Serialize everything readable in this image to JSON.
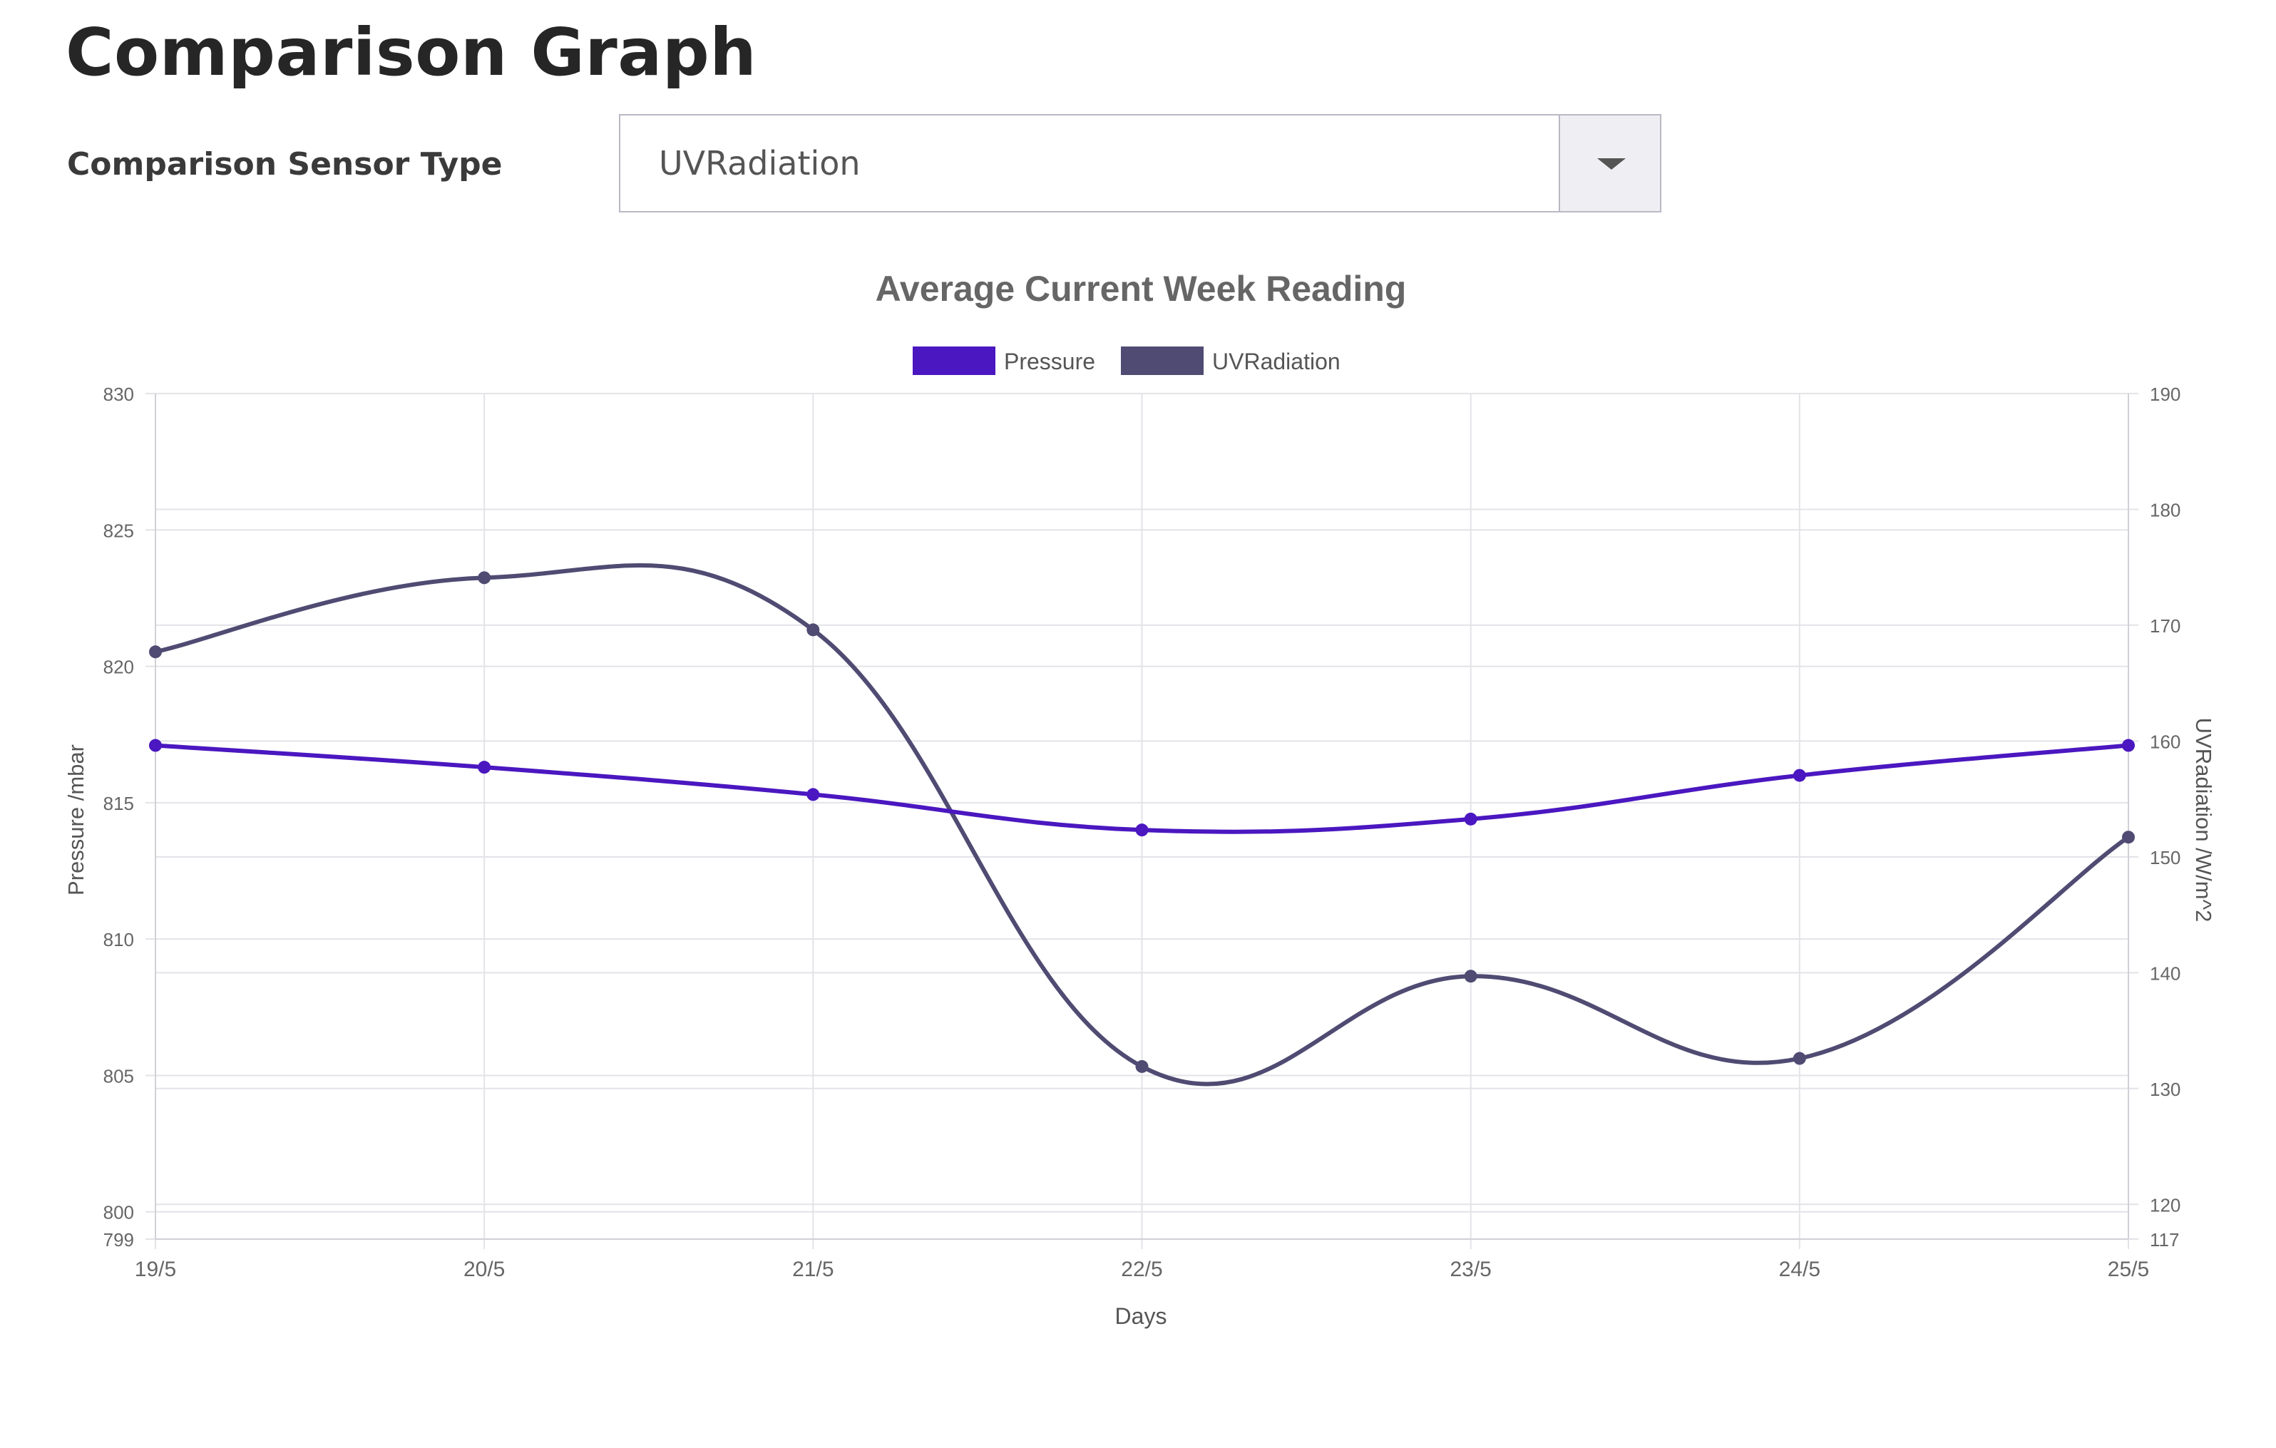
{
  "page": {
    "title": "Comparison Graph",
    "sensor_label": "Comparison Sensor Type",
    "sensor_selected": "UVRadiation"
  },
  "colors": {
    "pressure": "#4a17c0",
    "uvradiation": "#4f4b72",
    "grid": "#e3e3e8",
    "text": "#666666"
  },
  "icons": {
    "dropdown": "caret-down-icon"
  },
  "chart_data": {
    "type": "line",
    "title": "Average Current Week Reading",
    "xlabel": "Days",
    "categories": [
      "19/5",
      "20/5",
      "21/5",
      "22/5",
      "23/5",
      "24/5",
      "25/5"
    ],
    "grid": true,
    "legend_position": "top",
    "series": [
      {
        "name": "Pressure",
        "axis": "left",
        "values": [
          817.1,
          816.3,
          815.3,
          814.0,
          814.4,
          816.0,
          817.1
        ]
      },
      {
        "name": "UVRadiation",
        "axis": "right",
        "values": [
          167.7,
          174.1,
          169.6,
          131.9,
          139.7,
          132.6,
          151.7
        ]
      }
    ],
    "y_left": {
      "label": "Pressure /mbar",
      "range": [
        799,
        830
      ],
      "ticks": [
        799,
        800,
        805,
        810,
        815,
        820,
        825,
        830
      ]
    },
    "y_right": {
      "label": "UVRadiation /W/m^2",
      "range": [
        117,
        190
      ],
      "ticks": [
        117,
        120,
        130,
        140,
        150,
        160,
        170,
        180,
        190
      ]
    }
  }
}
